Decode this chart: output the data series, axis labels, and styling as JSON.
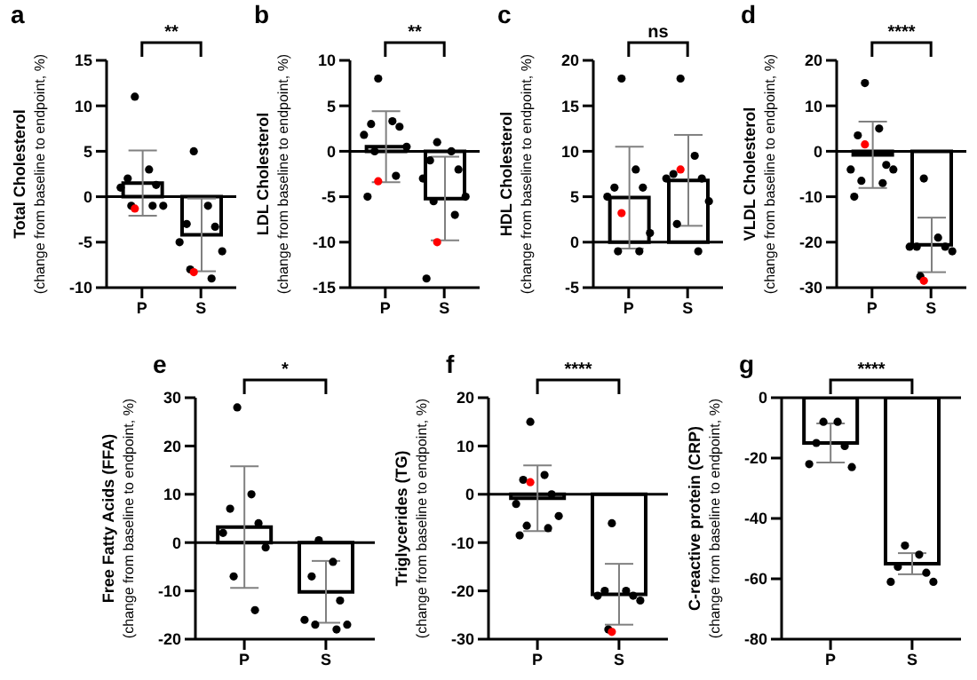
{
  "chart_data": [
    {
      "type": "bar",
      "title": "a",
      "ylabel": "Total Cholesterol (change from baseline to endpoint, %)",
      "categories": [
        "P",
        "S"
      ],
      "ylim": [
        -10,
        15
      ],
      "yticks": [
        -10,
        -5,
        0,
        5,
        10,
        15
      ],
      "annotations": [
        "**"
      ],
      "ref_lines": [
        {
          "axis": "y",
          "value": 0
        }
      ],
      "series": [
        {
          "color": "#ffffff",
          "values": [
            1.5,
            -4.2
          ],
          "errors": [
            3.6,
            4.0
          ]
        },
        {
          "type": "scatter",
          "color": "#000000",
          "x": [
            "P",
            "P",
            "P",
            "P",
            "P",
            "P",
            "P",
            "P",
            "S",
            "S",
            "S",
            "S",
            "S",
            "S",
            "S",
            "S"
          ],
          "values": [
            11,
            3,
            2,
            1.3,
            1,
            -1,
            -1,
            -1,
            5,
            -1,
            -3,
            -3.3,
            -5,
            -6,
            -8,
            -9
          ]
        },
        {
          "type": "scatter",
          "color": "#ff0000",
          "x": [
            "P",
            "S"
          ],
          "values": [
            -1.3,
            -8.3
          ]
        }
      ]
    },
    {
      "type": "bar",
      "title": "b",
      "ylabel": "LDL Cholesterol (change from baseline to endpoint, %)",
      "categories": [
        "P",
        "S"
      ],
      "ylim": [
        -15,
        10
      ],
      "yticks": [
        -15,
        -10,
        -5,
        0,
        5,
        10
      ],
      "annotations": [
        "**"
      ],
      "ref_lines": [
        {
          "axis": "y",
          "value": 0
        }
      ],
      "series": [
        {
          "color": "#ffffff",
          "values": [
            0.5,
            -5.2
          ],
          "errors": [
            3.9,
            4.6
          ]
        },
        {
          "type": "scatter",
          "color": "#000000",
          "x": [
            "P",
            "P",
            "P",
            "P",
            "P",
            "P",
            "P",
            "P",
            "P",
            "S",
            "S",
            "S",
            "S",
            "S",
            "S",
            "S",
            "S",
            "S"
          ],
          "values": [
            8,
            3.3,
            3,
            2.7,
            1.8,
            0.5,
            0,
            -2.7,
            -5,
            1,
            0,
            -1,
            -2,
            -3,
            -5,
            -5.5,
            -7,
            -14
          ]
        },
        {
          "type": "scatter",
          "color": "#ff0000",
          "x": [
            "P",
            "S"
          ],
          "values": [
            -3.3,
            -10
          ]
        }
      ]
    },
    {
      "type": "bar",
      "title": "c",
      "ylabel": "HDL Cholesterol (change from baseline to endpoint, %)",
      "categories": [
        "P",
        "S"
      ],
      "ylim": [
        -5,
        20
      ],
      "yticks": [
        -5,
        0,
        5,
        10,
        15,
        20
      ],
      "annotations": [
        "ns"
      ],
      "ref_lines": [
        {
          "axis": "y",
          "value": 0
        }
      ],
      "series": [
        {
          "color": "#ffffff",
          "values": [
            4.9,
            6.8
          ],
          "errors": [
            5.6,
            5
          ]
        },
        {
          "type": "scatter",
          "color": "#000000",
          "x": [
            "P",
            "P",
            "P",
            "P",
            "P",
            "P",
            "P",
            "P",
            "S",
            "S",
            "S",
            "S",
            "S",
            "S",
            "S",
            "S"
          ],
          "values": [
            18,
            8,
            6,
            6,
            5,
            1,
            -1,
            -1,
            18,
            9.5,
            7.5,
            7,
            7,
            4.5,
            2,
            -1
          ]
        },
        {
          "type": "scatter",
          "color": "#ff0000",
          "x": [
            "P",
            "S"
          ],
          "values": [
            3.2,
            8
          ]
        }
      ]
    },
    {
      "type": "bar",
      "title": "d",
      "ylabel": "VLDL Cholesterol (change from baseline to endpoint, %)",
      "categories": [
        "P",
        "S"
      ],
      "ylim": [
        -30,
        20
      ],
      "yticks": [
        -30,
        -20,
        -10,
        0,
        10,
        20
      ],
      "annotations": [
        "****"
      ],
      "ref_lines": [
        {
          "axis": "y",
          "value": 0
        }
      ],
      "series": [
        {
          "color": "#ffffff",
          "values": [
            -0.8,
            -20.6
          ],
          "errors": [
            7.3,
            6
          ]
        },
        {
          "type": "scatter",
          "color": "#000000",
          "x": [
            "P",
            "P",
            "P",
            "P",
            "P",
            "P",
            "P",
            "P",
            "P",
            "S",
            "S",
            "S",
            "S",
            "S",
            "S",
            "S"
          ],
          "values": [
            15,
            5,
            3.5,
            -3,
            -4,
            -4,
            -6.5,
            -7,
            -10,
            -6,
            -19,
            -21,
            -21,
            -21,
            -22,
            -27.5
          ]
        },
        {
          "type": "scatter",
          "color": "#ff0000",
          "x": [
            "P",
            "S"
          ],
          "values": [
            1.5,
            -28.5
          ]
        }
      ]
    },
    {
      "type": "bar",
      "title": "e",
      "ylabel": "Free Fatty Acids (FFA) (change from baseline to endpoint, %)",
      "categories": [
        "P",
        "S"
      ],
      "ylim": [
        -20,
        30
      ],
      "yticks": [
        -20,
        -10,
        0,
        10,
        20,
        30
      ],
      "annotations": [
        "*"
      ],
      "ref_lines": [
        {
          "axis": "y",
          "value": 0
        }
      ],
      "series": [
        {
          "color": "#ffffff",
          "values": [
            3.2,
            -10.2
          ],
          "errors": [
            12.6,
            6.4
          ]
        },
        {
          "type": "scatter",
          "color": "#000000",
          "x": [
            "P",
            "P",
            "P",
            "P",
            "P",
            "P",
            "P",
            "P",
            "S",
            "S",
            "S",
            "S",
            "S",
            "S",
            "S",
            "S"
          ],
          "values": [
            28,
            10,
            7,
            4,
            2,
            -1,
            -7,
            -14,
            0.5,
            -4,
            -7,
            -12,
            -16,
            -17,
            -17,
            -18
          ]
        }
      ]
    },
    {
      "type": "bar",
      "title": "f",
      "ylabel": "Triglycerides (TG) (change from baseline to endpoint, %)",
      "categories": [
        "P",
        "S"
      ],
      "ylim": [
        -30,
        20
      ],
      "yticks": [
        -30,
        -20,
        -10,
        0,
        10,
        20
      ],
      "annotations": [
        "****"
      ],
      "ref_lines": [
        {
          "axis": "y",
          "value": 0
        }
      ],
      "series": [
        {
          "color": "#ffffff",
          "values": [
            -0.8,
            -20.7
          ],
          "errors": [
            6.8,
            6.3
          ]
        },
        {
          "type": "scatter",
          "color": "#000000",
          "x": [
            "P",
            "P",
            "P",
            "P",
            "P",
            "P",
            "P",
            "P",
            "P",
            "S",
            "S",
            "S",
            "S",
            "S",
            "S",
            "S"
          ],
          "values": [
            15,
            4,
            3,
            0,
            -2,
            -4.5,
            -6.5,
            -7,
            -8.5,
            -6,
            -20,
            -20,
            -21,
            -21,
            -22,
            -28
          ]
        },
        {
          "type": "scatter",
          "color": "#ff0000",
          "x": [
            "P",
            "S"
          ],
          "values": [
            2.5,
            -28.5
          ]
        }
      ]
    },
    {
      "type": "bar",
      "title": "g",
      "ylabel": "C-reactive protein (CRP) (change from baseline to endpoint, %)",
      "categories": [
        "P",
        "S"
      ],
      "ylim": [
        -80,
        0
      ],
      "yticks": [
        -80,
        -60,
        -40,
        -20,
        0
      ],
      "annotations": [
        "****"
      ],
      "ref_lines": [
        {
          "axis": "y",
          "value": 0
        }
      ],
      "series": [
        {
          "color": "#ffffff",
          "values": [
            -15,
            -55
          ],
          "errors": [
            6.5,
            3.5
          ]
        },
        {
          "type": "scatter",
          "color": "#000000",
          "x": [
            "P",
            "P",
            "P",
            "P",
            "P",
            "P",
            "S",
            "S",
            "S",
            "S",
            "S",
            "S"
          ],
          "values": [
            -8,
            -8,
            -15,
            -16,
            -22,
            -23,
            -49,
            -52,
            -56,
            -58,
            -61,
            -61
          ]
        }
      ]
    }
  ]
}
